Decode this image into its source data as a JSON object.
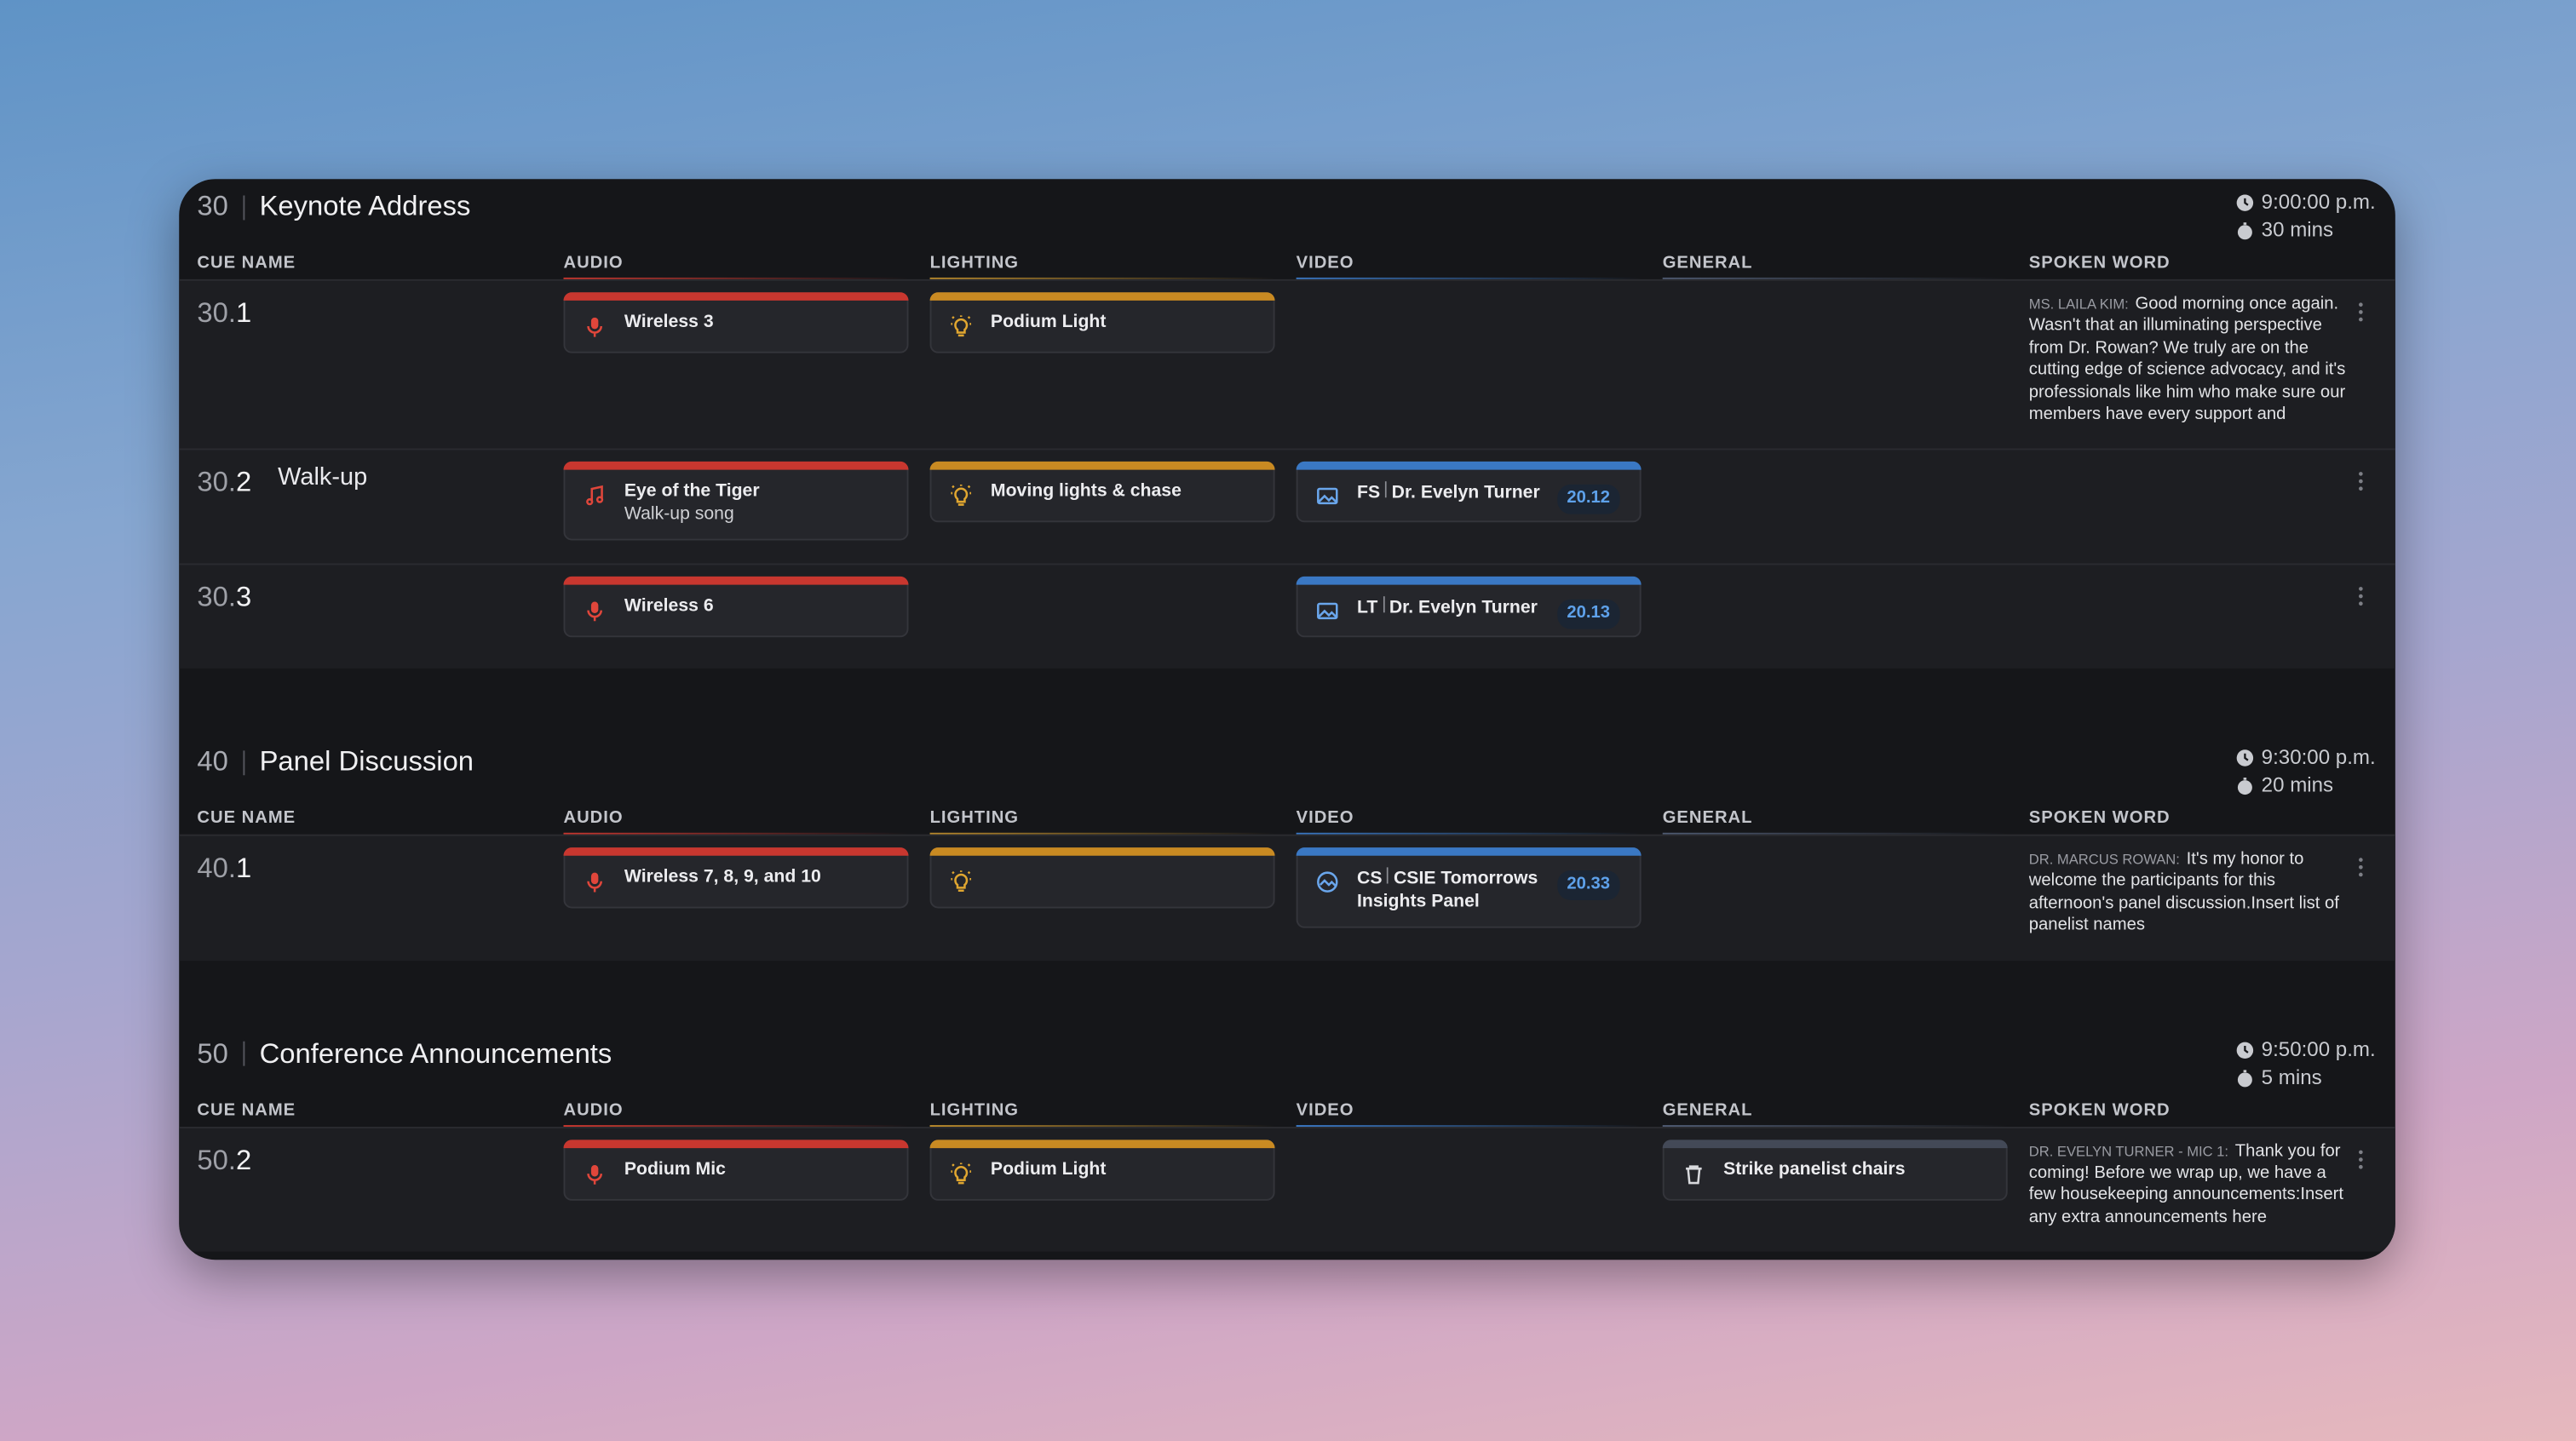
{
  "columns": [
    "CUE NAME",
    "AUDIO",
    "LIGHTING",
    "VIDEO",
    "GENERAL",
    "SPOKEN WORD"
  ],
  "sections": [
    {
      "number": "30",
      "title": "Keynote Address",
      "time": "9:00:00 p.m.",
      "duration": "30 mins",
      "cues": [
        {
          "section_part": "30.",
          "index": "1",
          "audio": {
            "label": "Wireless 3"
          },
          "lighting": {
            "label": "Podium Light"
          },
          "spoken": {
            "speaker": "MS. LAILA KIM:",
            "text": "Good morning once again. Wasn't that an illuminating perspective from Dr. Rowan? We truly are on the cutting edge of science advocacy, and it's professionals like him who make sure our members have every support and opportunity they"
          }
        },
        {
          "section_part": "30.",
          "index": "2",
          "name": "Walk-up",
          "audio": {
            "label": "Eye of the Tiger",
            "sublabel": "Walk-up song"
          },
          "lighting": {
            "label": "Moving lights & chase"
          },
          "video": {
            "prefix": "FS",
            "label": "Dr. Evelyn Turner",
            "badge": "20.12"
          }
        },
        {
          "section_part": "30.",
          "index": "3",
          "audio": {
            "label": "Wireless 6"
          },
          "video": {
            "prefix": "LT",
            "label": "Dr. Evelyn Turner",
            "badge": "20.13"
          }
        }
      ]
    },
    {
      "number": "40",
      "title": "Panel Discussion",
      "time": "9:30:00 p.m.",
      "duration": "20 mins",
      "cues": [
        {
          "section_part": "40.",
          "index": "1",
          "audio": {
            "label": "Wireless 7, 8, 9, and 10"
          },
          "lighting": {},
          "video": {
            "prefix": "CS",
            "label": "CSIE Tomorrows Insights Panel",
            "badge": "20.33"
          },
          "spoken": {
            "speaker": "DR. MARCUS ROWAN:",
            "text": "It's my honor to welcome the participants for this afternoon's panel discussion.Insert list of panelist names"
          }
        }
      ]
    },
    {
      "number": "50",
      "title": "Conference Announcements",
      "time": "9:50:00 p.m.",
      "duration": "5 mins",
      "cues": [
        {
          "section_part": "50.",
          "index": "2",
          "audio": {
            "label": "Podium Mic"
          },
          "lighting": {
            "label": "Podium Light"
          },
          "general": {
            "label": "Strike panelist chairs"
          },
          "spoken": {
            "speaker": "DR. EVELYN TURNER - MIC 1:",
            "text": "Thank you for coming! Before we wrap up, we have a few housekeeping announcements:Insert any extra announcements here"
          }
        }
      ]
    }
  ]
}
